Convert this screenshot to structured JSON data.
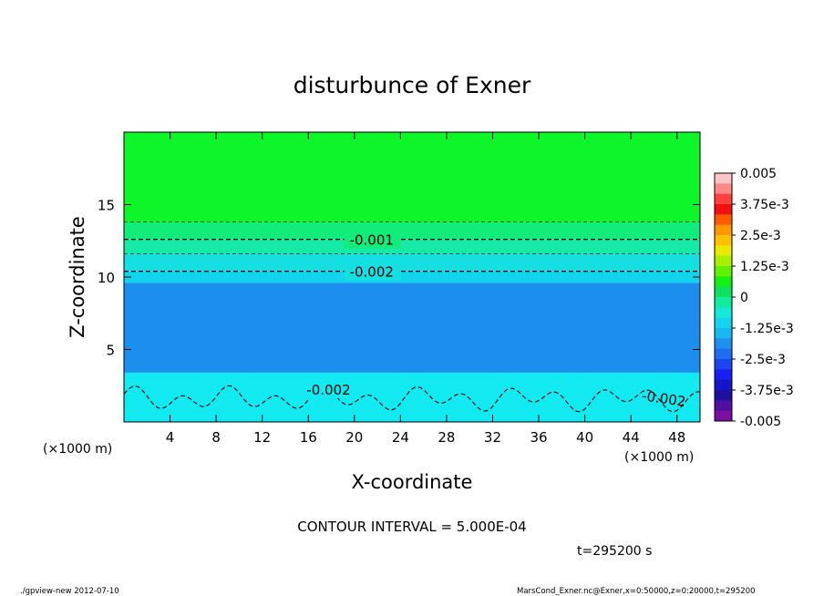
{
  "chart_data": {
    "type": "heatmap",
    "title": "disturbunce of Exner",
    "xlabel": "X-coordinate",
    "ylabel": "Z-coordinate",
    "x_unit_left": "(×1000 m)",
    "x_unit_right": "(×1000 m)",
    "xlim": [
      0,
      50
    ],
    "ylim": [
      0,
      20
    ],
    "x_ticks": [
      "4",
      "8",
      "12",
      "16",
      "20",
      "24",
      "28",
      "32",
      "36",
      "40",
      "44",
      "48"
    ],
    "y_ticks": [
      "5",
      "10",
      "15"
    ],
    "bands": [
      {
        "z_from": 13.8,
        "z_to": 20,
        "value": 0,
        "color": "#0ef52a"
      },
      {
        "z_from": 12.6,
        "z_to": 13.8,
        "value": -0.00075,
        "color": "#12ec7a"
      },
      {
        "z_from": 11.6,
        "z_to": 12.6,
        "value": -0.00125,
        "color": "#16eaa6"
      },
      {
        "z_from": 10.4,
        "z_to": 11.6,
        "value": -0.0015,
        "color": "#15dfe0"
      },
      {
        "z_from": 9.6,
        "z_to": 10.4,
        "value": -0.002,
        "color": "#11d3ee"
      },
      {
        "z_from": 3.4,
        "z_to": 9.6,
        "value": -0.0025,
        "color": "#1c8fee"
      },
      {
        "z_from": 0,
        "z_to": 3.4,
        "value": -0.002,
        "color": "#13e9f0"
      }
    ],
    "contours": [
      {
        "level": -0.0005,
        "z": 13.8,
        "label": ""
      },
      {
        "level": -0.001,
        "z": 12.6,
        "label": "-0.001"
      },
      {
        "level": -0.0015,
        "z": 11.6,
        "label": ""
      },
      {
        "level": -0.002,
        "z": 10.4,
        "label": "-0.002"
      },
      {
        "level": -0.002,
        "z": 1.6,
        "label": "-0.002",
        "label2": "-0.002",
        "wavy": true
      }
    ],
    "colorbar": {
      "labels": [
        "0.005",
        "3.75e-3",
        "2.5e-3",
        "1.25e-3",
        "0",
        "-1.25e-3",
        "-2.5e-3",
        "-3.75e-3",
        "-0.005"
      ],
      "colors": [
        "#ffc4c4",
        "#ff8888",
        "#ff4040",
        "#f01010",
        "#ff5a00",
        "#ff9800",
        "#ffc000",
        "#e8e800",
        "#a8f000",
        "#60f000",
        "#14f014",
        "#10e060",
        "#12ec9c",
        "#15e8d8",
        "#14d4f0",
        "#18b8f0",
        "#1f8ff0",
        "#1f6ef0",
        "#1c44f0",
        "#1a1ef0",
        "#1414c8",
        "#1c0ea0",
        "#500ea0",
        "#7a10a0"
      ]
    }
  },
  "footer": {
    "contour_interval": "CONTOUR INTERVAL = 5.000E-04",
    "time": "t=295200 s",
    "program": "./gpview-new  2012-07-10",
    "source": "MarsCond_Exner.nc@Exner,x=0:50000,z=0:20000,t=295200"
  }
}
